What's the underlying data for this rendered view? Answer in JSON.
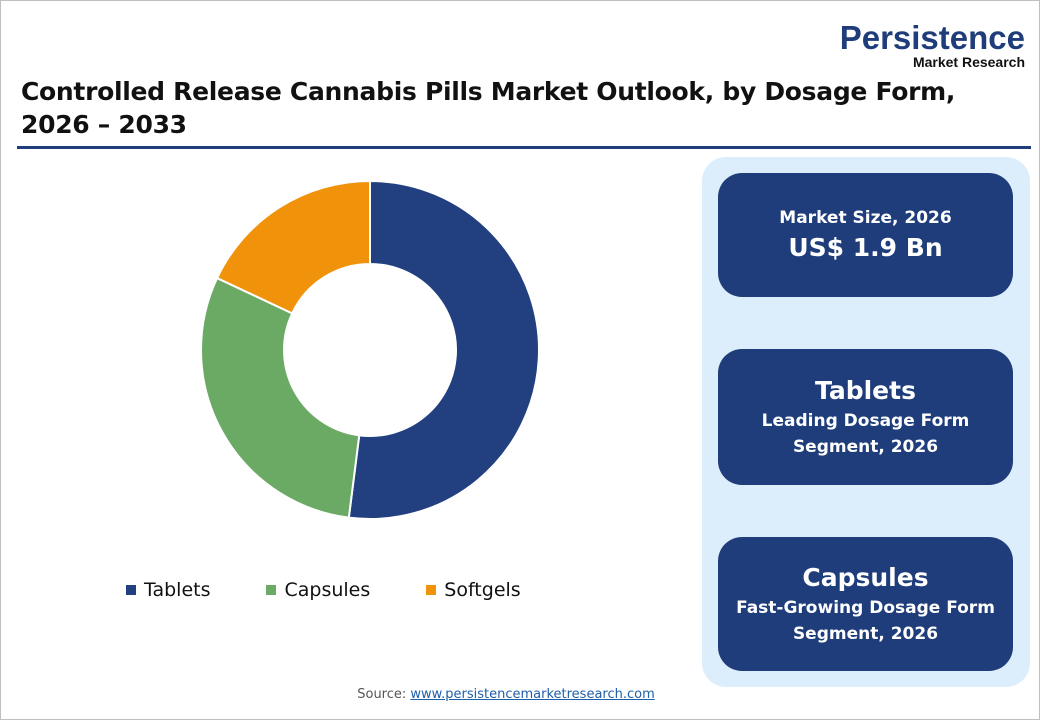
{
  "title_line1": "Controlled Release Cannabis Pills Market Outlook, by Dosage Form,",
  "title_line2": "2026 – 2033",
  "logo": {
    "main": "Persistence",
    "sub": "Market Research"
  },
  "chart_data": {
    "type": "pie",
    "donut": true,
    "categories": [
      "Tablets",
      "Capsules",
      "Softgels"
    ],
    "values": [
      52,
      30,
      18
    ],
    "unit": "%",
    "colors": [
      "#22407f",
      "#6aaa64",
      "#f0920a"
    ],
    "legend_position": "bottom"
  },
  "cards": [
    {
      "label": "Market Size, 2026",
      "value": "US$ 1.9 Bn"
    },
    {
      "value": "Tablets",
      "label1": "Leading Dosage Form",
      "label2": "Segment, 2026"
    },
    {
      "value": "Capsules",
      "label1": "Fast-Growing Dosage Form",
      "label2": "Segment, 2026"
    }
  ],
  "source": {
    "label": "Source:",
    "link": "www.persistencemarketresearch.com"
  }
}
